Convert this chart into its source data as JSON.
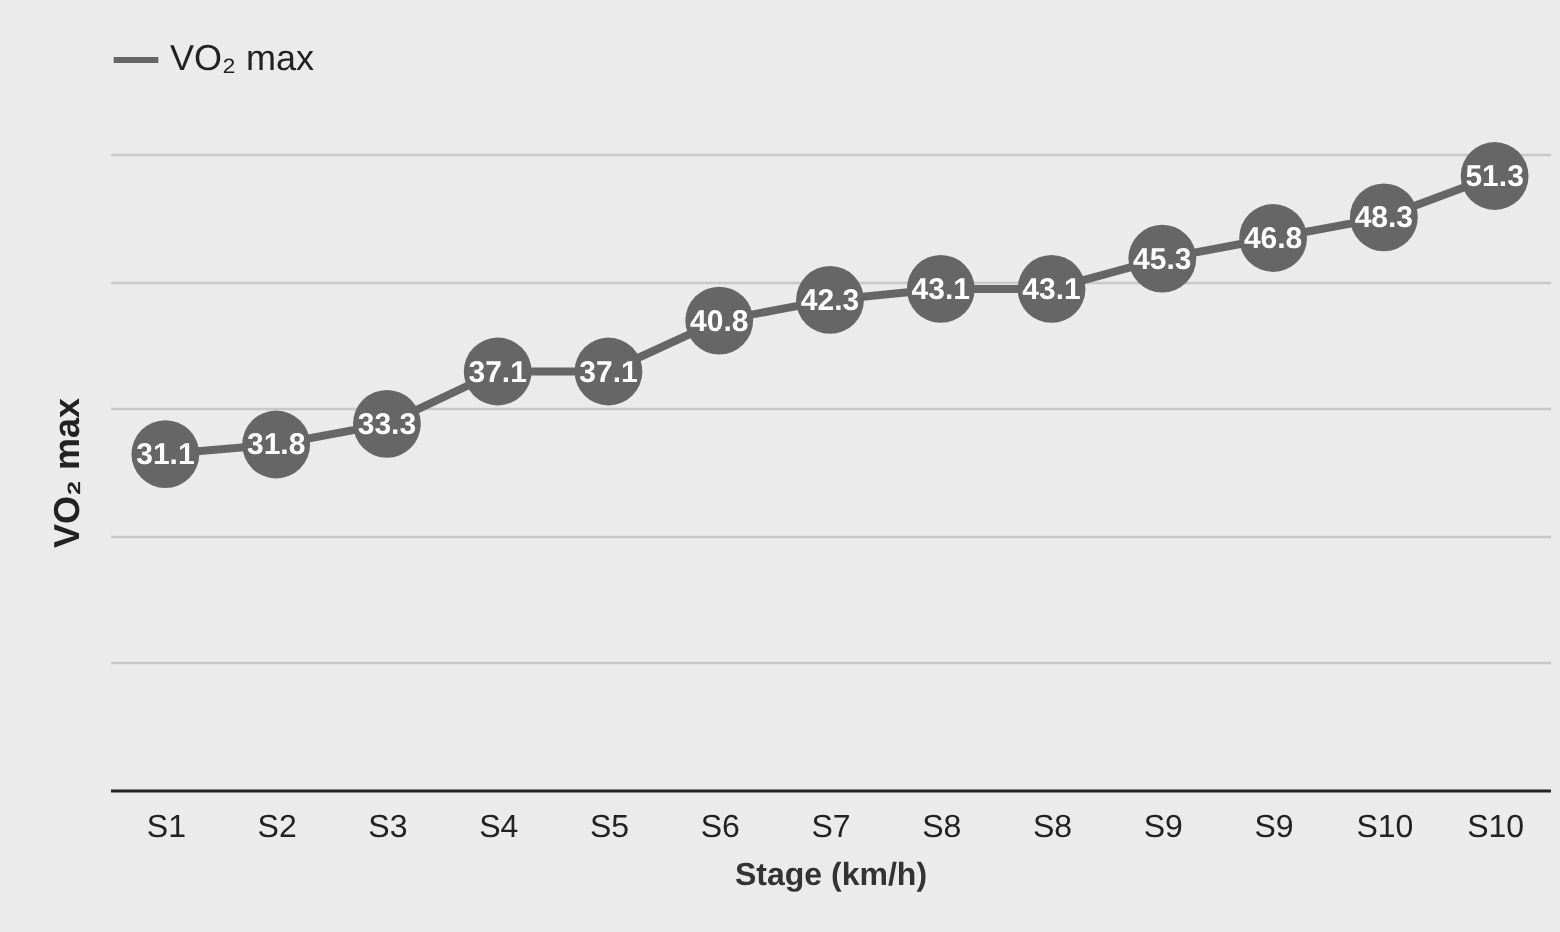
{
  "chart_data": {
    "type": "line",
    "categories": [
      "S1",
      "S2",
      "S3",
      "S4",
      "S5",
      "S6",
      "S7",
      "S8",
      "S8",
      "S9",
      "S9",
      "S10",
      "S10"
    ],
    "series": [
      {
        "name": "VO₂ max",
        "color": "#666666",
        "values": [
          31.1,
          31.8,
          33.3,
          37.1,
          37.1,
          40.8,
          42.3,
          43.1,
          43.1,
          45.3,
          46.8,
          48.3,
          51.3
        ]
      }
    ],
    "xlabel": "Stage (km/h)",
    "ylabel": "VO₂ max",
    "ylim": [
      6.7,
      52.9
    ],
    "yticks": [
      {
        "value": 16,
        "label": null
      },
      {
        "value": 25.2,
        "label": null
      },
      {
        "value": 34.4,
        "label": null
      },
      {
        "value": 43.6,
        "label": null
      },
      {
        "value": 52.9,
        "label": null
      }
    ],
    "grid": "y",
    "legend": "top left",
    "marker": "circle",
    "data_labels": true
  }
}
